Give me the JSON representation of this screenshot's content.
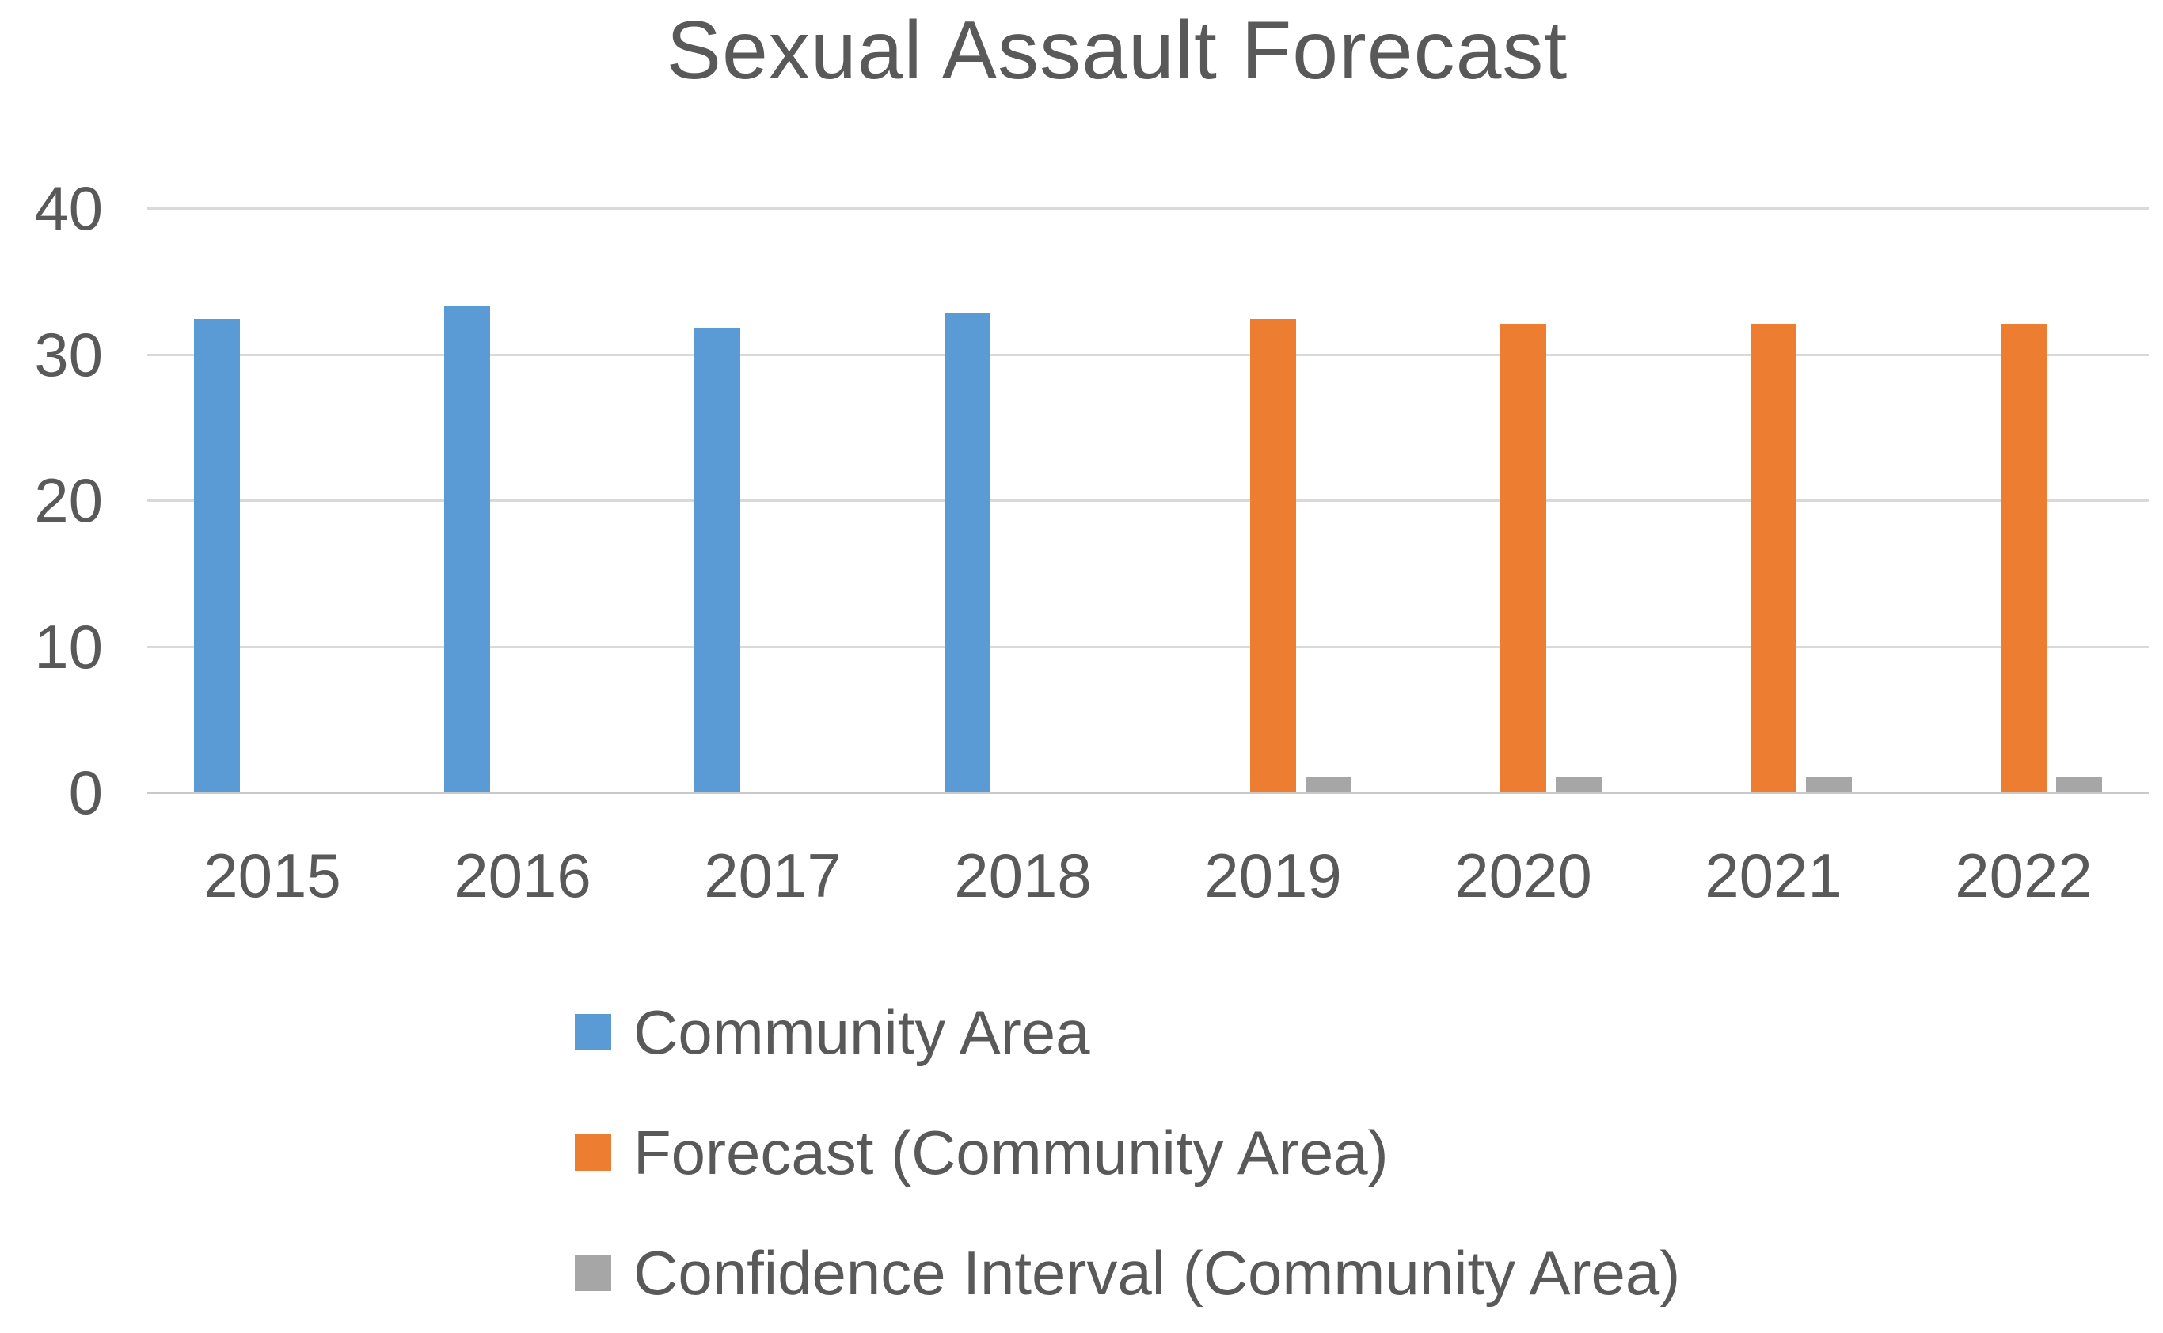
{
  "chart_data": {
    "type": "bar",
    "title": "Sexual Assault Forecast",
    "xlabel": "",
    "ylabel": "",
    "categories": [
      "2015",
      "2016",
      "2017",
      "2018",
      "2019",
      "2020",
      "2021",
      "2022"
    ],
    "series": [
      {
        "name": "Community Area",
        "color": "#5B9BD5",
        "values": [
          32.4,
          33.3,
          31.8,
          32.8,
          null,
          null,
          null,
          null
        ]
      },
      {
        "name": "Forecast (Community Area)",
        "color": "#ED7D31",
        "values": [
          null,
          null,
          null,
          null,
          32.4,
          32.1,
          32.1,
          32.1
        ]
      },
      {
        "name": "Confidence Interval (Community Area)",
        "color": "#A6A6A6",
        "values": [
          null,
          null,
          null,
          null,
          1.1,
          1.1,
          1.1,
          1.1
        ]
      }
    ],
    "ylim": [
      0,
      40
    ],
    "yticks": [
      0,
      10,
      20,
      30,
      40
    ],
    "grid": true,
    "legend_position": "bottom-left-stacked"
  },
  "colors": {
    "background": "#FFFFFF",
    "text": "#595959",
    "gridline": "#D9D9D9",
    "axis_line": "#C9C9C9"
  }
}
